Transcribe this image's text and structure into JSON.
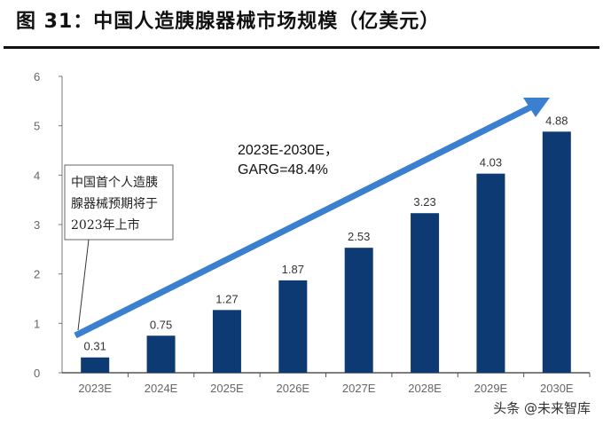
{
  "title": "图 31：中国人造胰腺器械市场规模（亿美元）",
  "watermark": "头条 @未来智库",
  "chart_data": {
    "type": "bar",
    "title": "中国人造胰腺器械市场规模（亿美元）",
    "categories": [
      "2023E",
      "2024E",
      "2025E",
      "2026E",
      "2027E",
      "2028E",
      "2029E",
      "2030E"
    ],
    "values": [
      0.31,
      0.75,
      1.27,
      1.87,
      2.53,
      3.23,
      4.03,
      4.88
    ],
    "ylim": [
      0,
      6
    ],
    "yticks": [
      0,
      1,
      2,
      3,
      4,
      5,
      6
    ],
    "bar_color": "#0d3a73",
    "arrow_color": "#3b7fd0",
    "annotations": {
      "growth": [
        "2023E-2030E，",
        "GARG=48.4%"
      ],
      "callout": [
        "中国首个人造胰",
        "腺器械预期将于",
        "2023年上市"
      ]
    }
  }
}
